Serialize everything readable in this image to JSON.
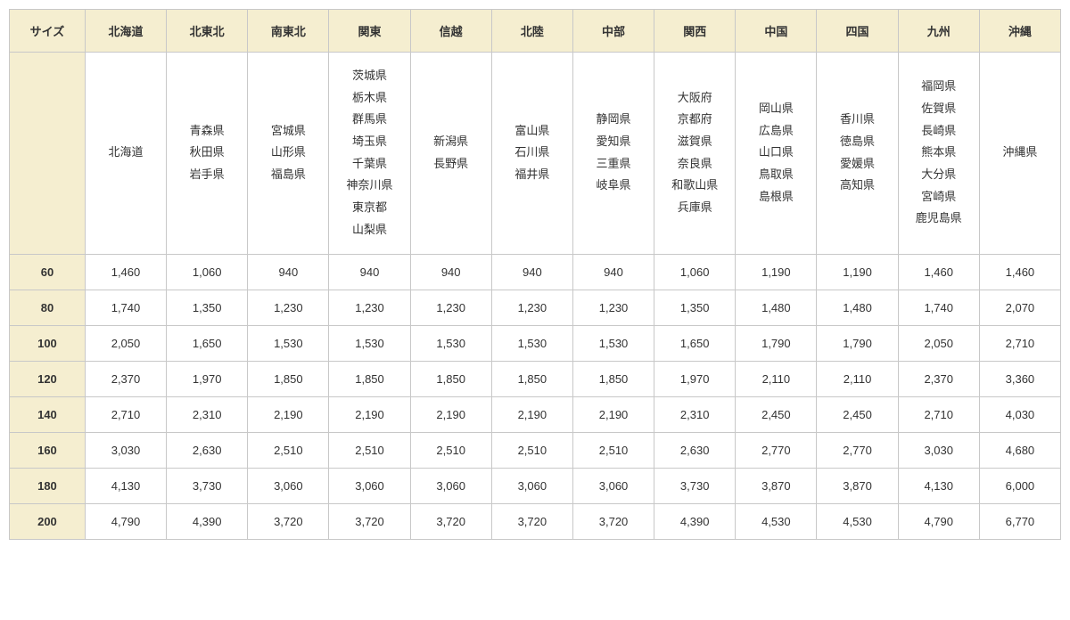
{
  "table": {
    "type": "table",
    "header_bg": "#f5eed0",
    "border_color": "#c8c8c8",
    "text_color": "#333333",
    "background_color": "#ffffff",
    "font_size_pt": 10,
    "size_label": "サイズ",
    "regions": [
      "北海道",
      "北東北",
      "南東北",
      "関東",
      "信越",
      "北陸",
      "中部",
      "関西",
      "中国",
      "四国",
      "九州",
      "沖縄"
    ],
    "prefectures": [
      "北海道",
      "青森県\n秋田県\n岩手県",
      "宮城県\n山形県\n福島県",
      "茨城県\n栃木県\n群馬県\n埼玉県\n千葉県\n神奈川県\n東京都\n山梨県",
      "新潟県\n長野県",
      "富山県\n石川県\n福井県",
      "静岡県\n愛知県\n三重県\n岐阜県",
      "大阪府\n京都府\n滋賀県\n奈良県\n和歌山県\n兵庫県",
      "岡山県\n広島県\n山口県\n鳥取県\n島根県",
      "香川県\n徳島県\n愛媛県\n高知県",
      "福岡県\n佐賀県\n長崎県\n熊本県\n大分県\n宮崎県\n鹿児島県",
      "沖縄県"
    ],
    "sizes": [
      "60",
      "80",
      "100",
      "120",
      "140",
      "160",
      "180",
      "200"
    ],
    "prices": [
      [
        "1,460",
        "1,060",
        "940",
        "940",
        "940",
        "940",
        "940",
        "1,060",
        "1,190",
        "1,190",
        "1,460",
        "1,460"
      ],
      [
        "1,740",
        "1,350",
        "1,230",
        "1,230",
        "1,230",
        "1,230",
        "1,230",
        "1,350",
        "1,480",
        "1,480",
        "1,740",
        "2,070"
      ],
      [
        "2,050",
        "1,650",
        "1,530",
        "1,530",
        "1,530",
        "1,530",
        "1,530",
        "1,650",
        "1,790",
        "1,790",
        "2,050",
        "2,710"
      ],
      [
        "2,370",
        "1,970",
        "1,850",
        "1,850",
        "1,850",
        "1,850",
        "1,850",
        "1,970",
        "2,110",
        "2,110",
        "2,370",
        "3,360"
      ],
      [
        "2,710",
        "2,310",
        "2,190",
        "2,190",
        "2,190",
        "2,190",
        "2,190",
        "2,310",
        "2,450",
        "2,450",
        "2,710",
        "4,030"
      ],
      [
        "3,030",
        "2,630",
        "2,510",
        "2,510",
        "2,510",
        "2,510",
        "2,510",
        "2,630",
        "2,770",
        "2,770",
        "3,030",
        "4,680"
      ],
      [
        "4,130",
        "3,730",
        "3,060",
        "3,060",
        "3,060",
        "3,060",
        "3,060",
        "3,730",
        "3,870",
        "3,870",
        "4,130",
        "6,000"
      ],
      [
        "4,790",
        "4,390",
        "3,720",
        "3,720",
        "3,720",
        "3,720",
        "3,720",
        "4,390",
        "4,530",
        "4,530",
        "4,790",
        "6,770"
      ]
    ]
  }
}
